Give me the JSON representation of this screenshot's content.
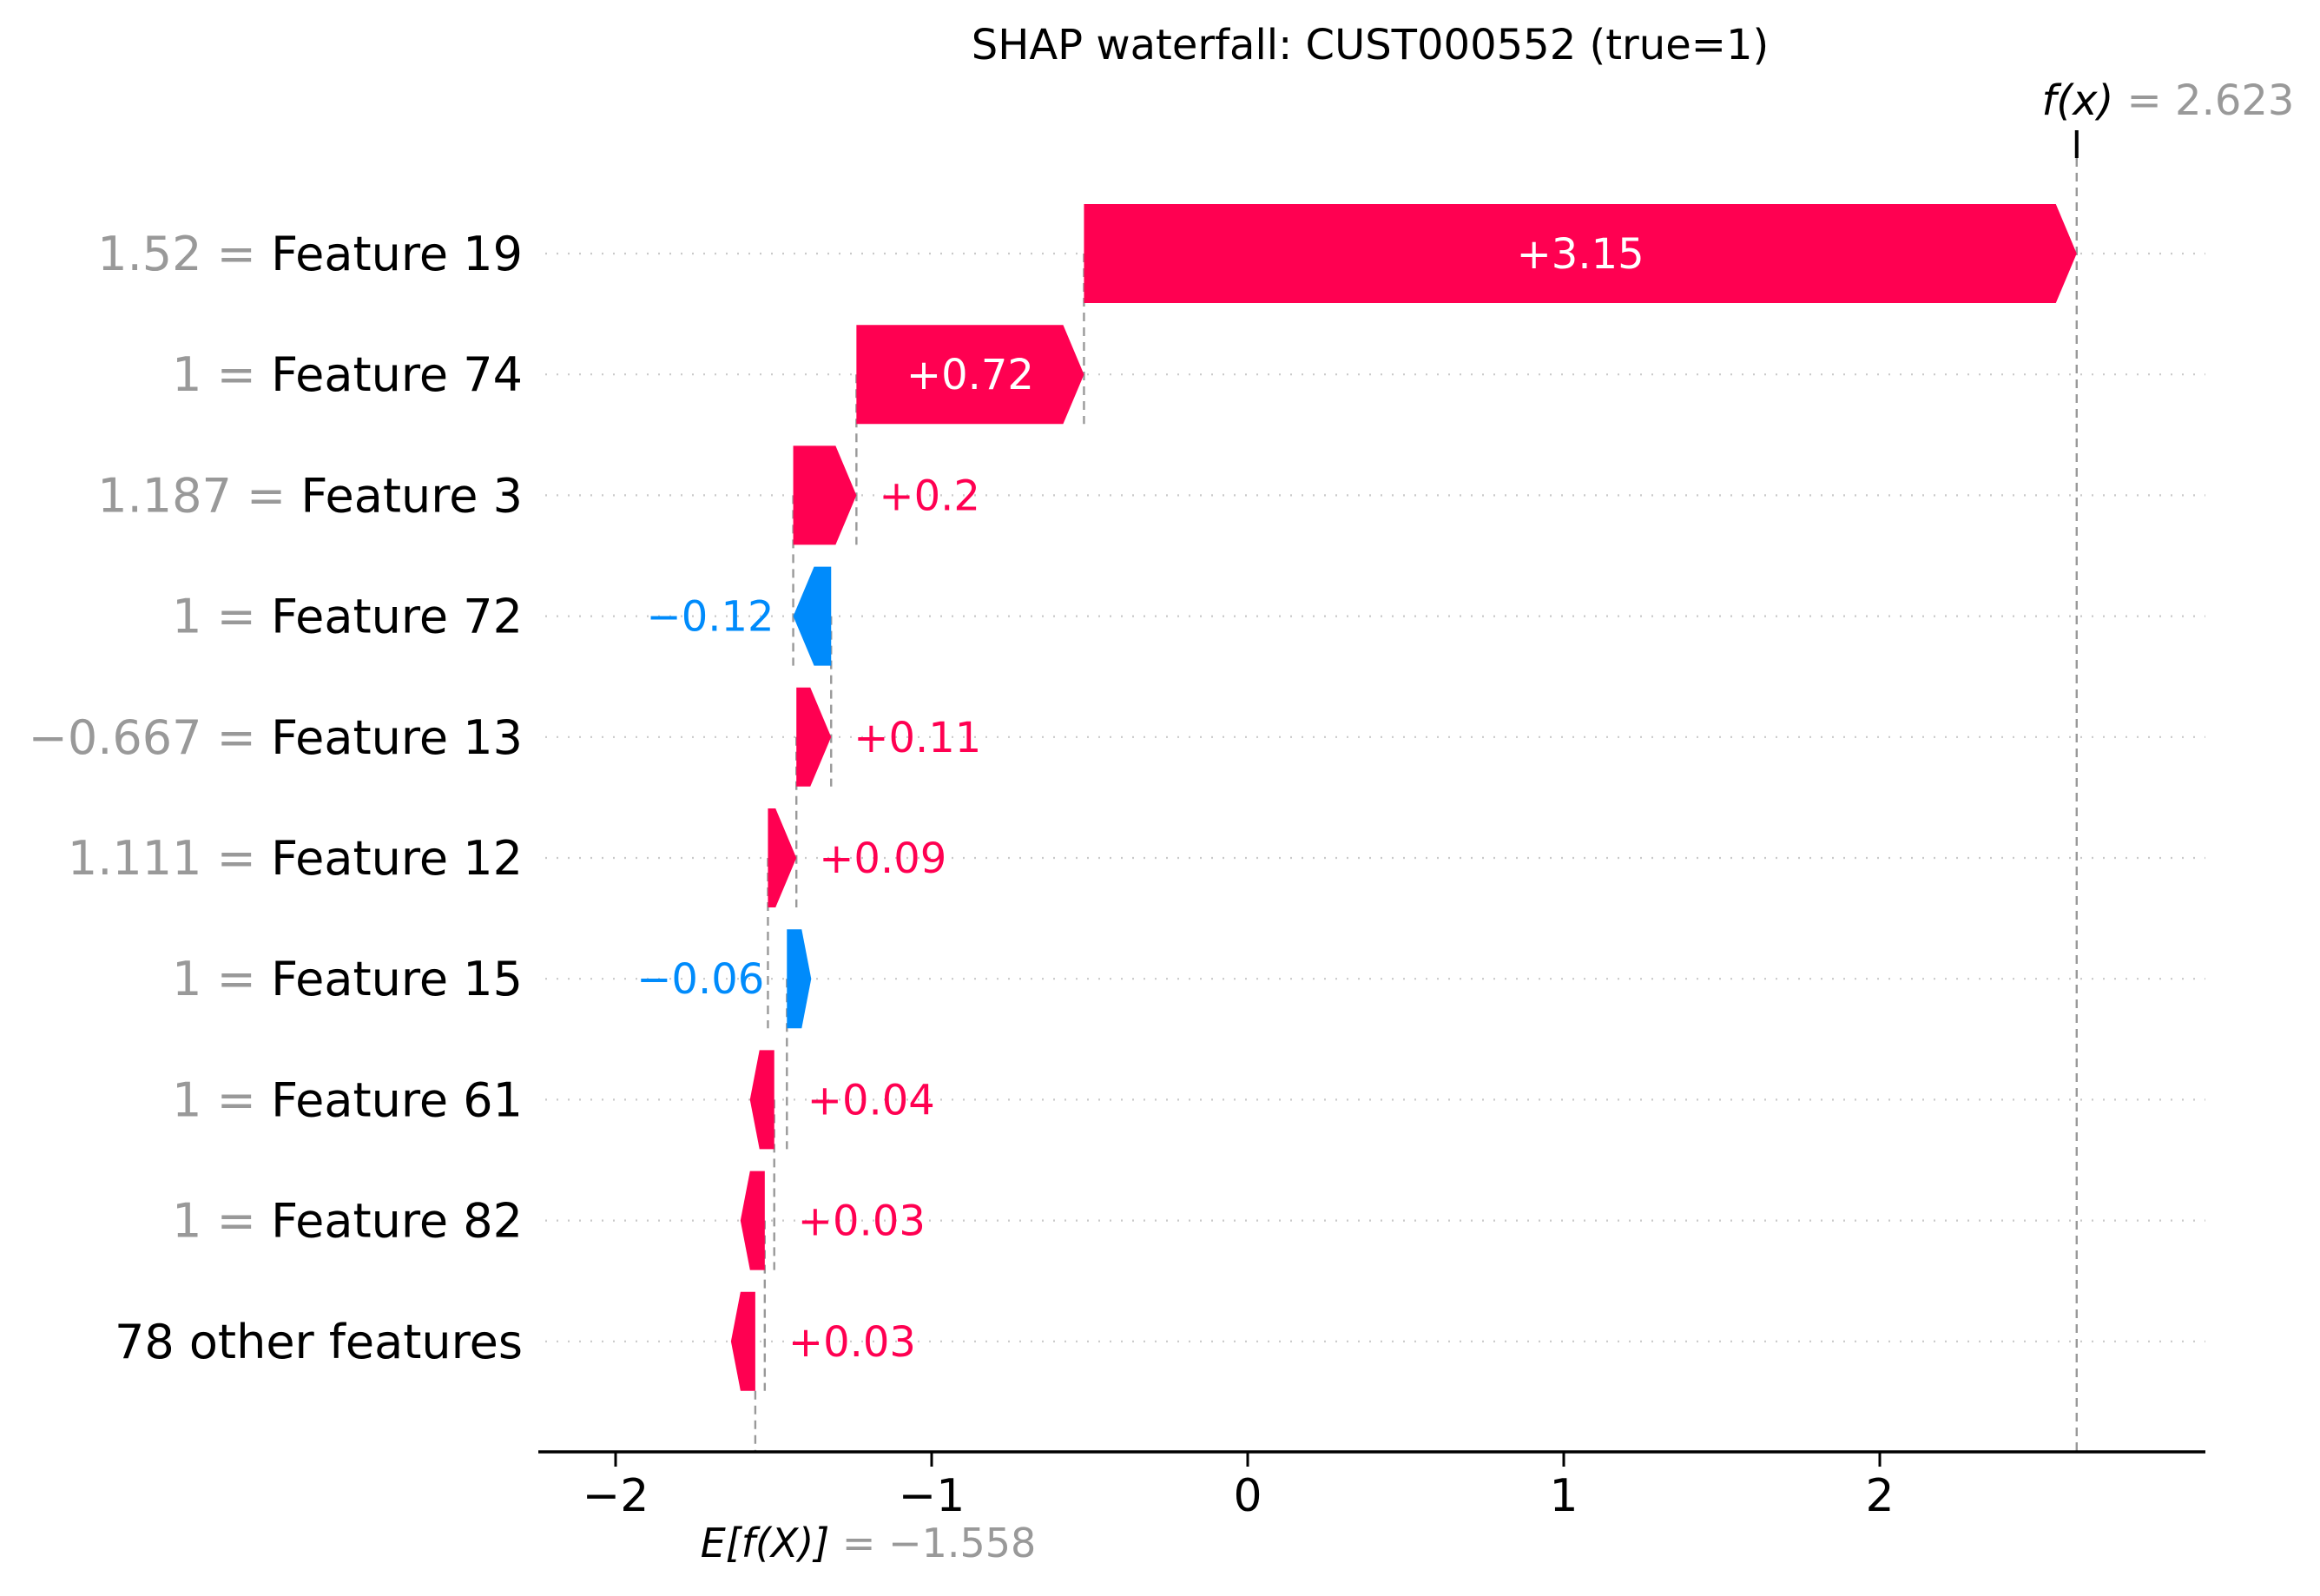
{
  "chart_data": {
    "type": "waterfall",
    "title": "SHAP waterfall: CUST000552 (true=1)",
    "fx": {
      "label_italic": "f(x)",
      "label_rest": " = 2.623",
      "value": 2.623
    },
    "base": {
      "label_italic": "E[f(X)]",
      "label_rest": " = −1.558",
      "value": -1.558
    },
    "x_axis": {
      "ticks": [
        -2,
        -1,
        0,
        1,
        2
      ],
      "tick_labels": [
        "−2",
        "−1",
        "0",
        "1",
        "2"
      ],
      "xlim": [
        -2.22,
        3.03
      ],
      "grid": "dotted horizontal line per row"
    },
    "legend": "none",
    "colors": {
      "positive": "#ff0051",
      "negative": "#008bfb",
      "muted": "#999999",
      "gridline": "#c9c9c9",
      "connector": "#999999",
      "axis": "#000000"
    },
    "rows": [
      {
        "feature_value": "1.52",
        "label_gray": "1.52 = ",
        "feature": "Feature 19",
        "shap": 3.15,
        "shap_label": "+3.15",
        "label_placement": "inside"
      },
      {
        "feature_value": "1",
        "label_gray": "1 = ",
        "feature": "Feature 74",
        "shap": 0.72,
        "shap_label": "+0.72",
        "label_placement": "inside"
      },
      {
        "feature_value": "1.187",
        "label_gray": "1.187 = ",
        "feature": "Feature 3",
        "shap": 0.2,
        "shap_label": "+0.2",
        "label_placement": "right"
      },
      {
        "feature_value": "1",
        "label_gray": "1 = ",
        "feature": "Feature 72",
        "shap": -0.12,
        "shap_label": "−0.12",
        "label_placement": "left"
      },
      {
        "feature_value": "−0.667",
        "label_gray": "−0.667 = ",
        "feature": "Feature 13",
        "shap": 0.11,
        "shap_label": "+0.11",
        "label_placement": "right"
      },
      {
        "feature_value": "1.111",
        "label_gray": "1.111 = ",
        "feature": "Feature 12",
        "shap": 0.09,
        "shap_label": "+0.09",
        "label_placement": "right"
      },
      {
        "feature_value": "1",
        "label_gray": "1 = ",
        "feature": "Feature 15",
        "shap": -0.06,
        "shap_label": "−0.06",
        "label_placement": "left"
      },
      {
        "feature_value": "1",
        "label_gray": "1 = ",
        "feature": "Feature 61",
        "shap": 0.04,
        "shap_label": "+0.04",
        "label_placement": "right"
      },
      {
        "feature_value": "1",
        "label_gray": "1 = ",
        "feature": "Feature 82",
        "shap": 0.03,
        "shap_label": "+0.03",
        "label_placement": "right"
      },
      {
        "feature_value": "",
        "label_gray": "",
        "feature": "78 other features",
        "shap": 0.03,
        "shap_label": "+0.03",
        "label_placement": "right"
      }
    ]
  }
}
